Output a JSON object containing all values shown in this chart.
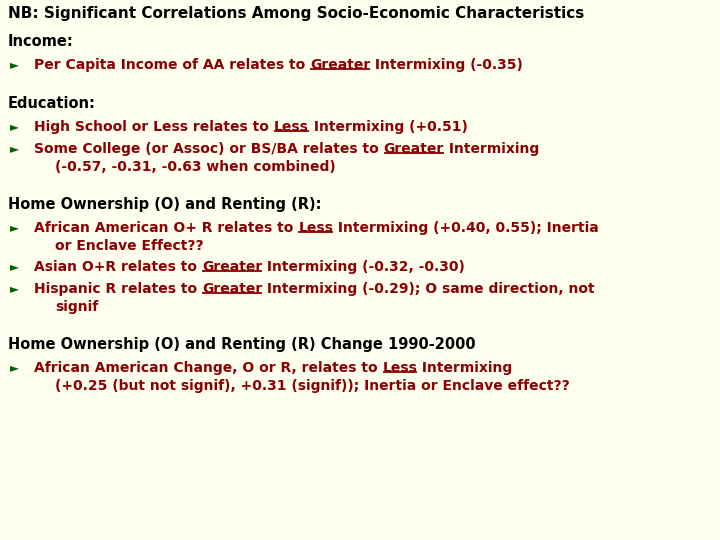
{
  "bg_color": "#FFFFF0",
  "title_color": "#000000",
  "section_color": "#000000",
  "bullet_color": "#8B0000",
  "arrow_color": "#006400",
  "title_fontsize": 11.0,
  "section_fontsize": 10.5,
  "bullet_fontsize": 10.0,
  "arrow_fontsize": 8.5,
  "title": "NB: Significant Correlations Among Socio-Economic Characteristics",
  "sections": [
    {
      "label": "Income:",
      "items": [
        {
          "parts": [
            {
              "text": "Per Capita Income of AA relates to ",
              "ul": false
            },
            {
              "text": "Greater",
              "ul": true
            },
            {
              "text": " Intermixing (-0.35)",
              "ul": false
            }
          ],
          "line2": null
        }
      ]
    },
    {
      "label": "Education:",
      "items": [
        {
          "parts": [
            {
              "text": "High School or Less relates to ",
              "ul": false
            },
            {
              "text": "Less",
              "ul": true
            },
            {
              "text": " Intermixing (+0.51)",
              "ul": false
            }
          ],
          "line2": null
        },
        {
          "parts": [
            {
              "text": "Some College (or Assoc) or BS/BA relates to ",
              "ul": false
            },
            {
              "text": "Greater",
              "ul": true
            },
            {
              "text": " Intermixing",
              "ul": false
            }
          ],
          "line2": "(-0.57, -0.31, -0.63 when combined)"
        }
      ]
    },
    {
      "label": "Home Ownership (O) and Renting (R):",
      "items": [
        {
          "parts": [
            {
              "text": "African American O+ R relates to ",
              "ul": false
            },
            {
              "text": "Less",
              "ul": true
            },
            {
              "text": " Intermixing (+0.40, 0.55); Inertia",
              "ul": false
            }
          ],
          "line2": "or Enclave Effect??"
        },
        {
          "parts": [
            {
              "text": "Asian O+R relates to ",
              "ul": false
            },
            {
              "text": "Greater",
              "ul": true
            },
            {
              "text": " Intermixing (-0.32, -0.30)",
              "ul": false
            }
          ],
          "line2": null
        },
        {
          "parts": [
            {
              "text": "Hispanic R relates to ",
              "ul": false
            },
            {
              "text": "Greater",
              "ul": true
            },
            {
              "text": " Intermixing (-0.29); O same direction, not",
              "ul": false
            }
          ],
          "line2": "signif"
        }
      ]
    },
    {
      "label": "Home Ownership (O) and Renting (R) Change 1990-2000",
      "items": [
        {
          "parts": [
            {
              "text": "African American Change, O or R, relates to ",
              "ul": false
            },
            {
              "text": "Less",
              "ul": true
            },
            {
              "text": " Intermixing",
              "ul": false
            }
          ],
          "line2": "(+0.25 (but not signif), +0.31 (signif)); Inertia or Enclave effect??"
        }
      ]
    }
  ]
}
